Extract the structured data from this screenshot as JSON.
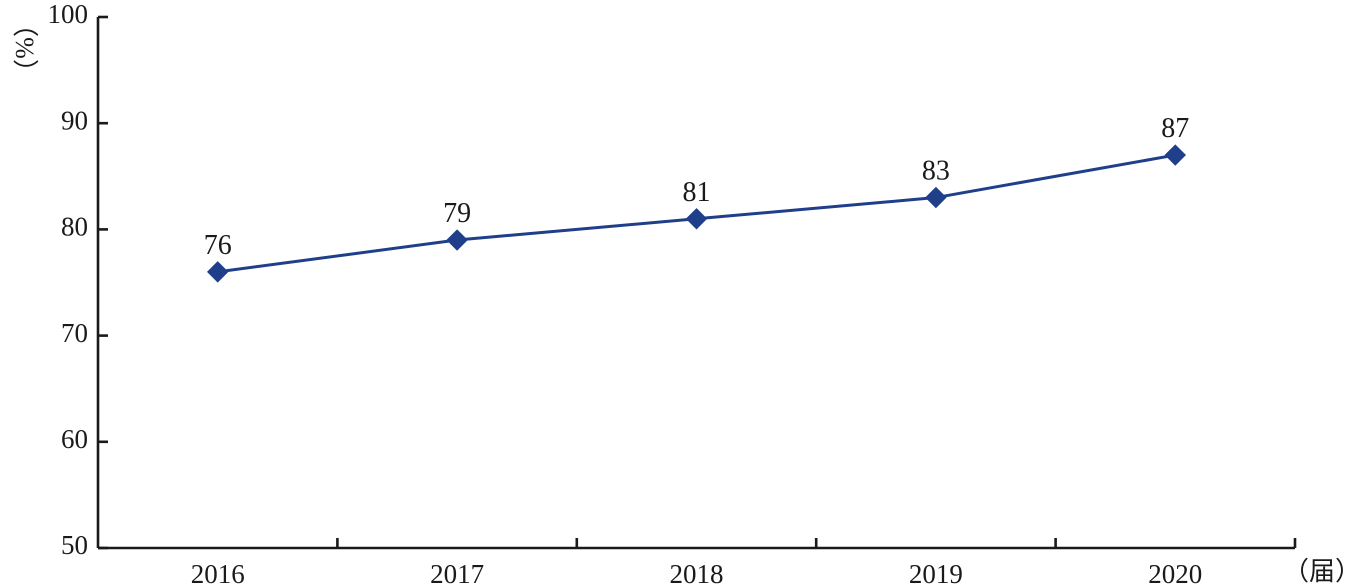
{
  "chart_data": {
    "type": "line",
    "x": [
      "2016",
      "2017",
      "2018",
      "2019",
      "2020"
    ],
    "series": [
      {
        "values": [
          76,
          79,
          81,
          83,
          87
        ],
        "color": "#1f3f8a",
        "marker": "diamond"
      }
    ],
    "data_labels": [
      "76",
      "79",
      "81",
      "83",
      "87"
    ],
    "y_ticks": [
      50,
      60,
      70,
      80,
      90,
      100
    ],
    "ylim": [
      50,
      100
    ],
    "ylabel": "（%）",
    "xlabel": "（届）",
    "grid": false,
    "legend": "none"
  }
}
